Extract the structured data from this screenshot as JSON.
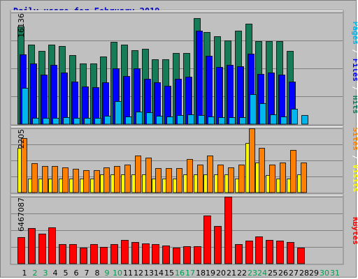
{
  "chart_data": [
    {
      "type": "bar",
      "title": "Daily usage for February 2019",
      "panel": "Pages / Files / Hits",
      "ymax_label": "16136",
      "ylim": [
        0,
        16136
      ],
      "categories": [
        "1",
        "2",
        "3",
        "4",
        "5",
        "6",
        "7",
        "8",
        "9",
        "10",
        "11",
        "12",
        "13",
        "14",
        "15",
        "16",
        "17",
        "18",
        "19",
        "20",
        "21",
        "22",
        "23",
        "24",
        "25",
        "26",
        "27",
        "28",
        "29",
        "30",
        "31"
      ],
      "series": [
        {
          "name": "Hits",
          "color": "#157c57",
          "values": [
            14100,
            11500,
            10600,
            11500,
            11300,
            10000,
            8800,
            8800,
            9800,
            11900,
            11500,
            10700,
            10900,
            9400,
            9400,
            10300,
            10300,
            15300,
            13300,
            12700,
            12100,
            13500,
            14500,
            12000,
            12000,
            12000,
            10600,
            null,
            null,
            null,
            null
          ]
        },
        {
          "name": "Files",
          "color": "#0000ff",
          "values": [
            10100,
            8800,
            7200,
            8600,
            7500,
            6200,
            5400,
            5300,
            6100,
            8100,
            7000,
            8100,
            6600,
            6100,
            5500,
            6600,
            6900,
            13500,
            9900,
            8300,
            8600,
            8400,
            10200,
            7300,
            7500,
            7200,
            6200,
            null,
            null,
            null,
            null
          ]
        },
        {
          "name": "Pages",
          "color": "#00b6ec",
          "values": [
            5200,
            900,
            900,
            900,
            1000,
            900,
            900,
            900,
            1200,
            3300,
            1100,
            1800,
            1700,
            1200,
            1100,
            1300,
            1400,
            1300,
            1100,
            1000,
            1000,
            1000,
            4300,
            3000,
            1400,
            1100,
            2200,
            1300,
            null,
            null,
            null
          ]
        }
      ]
    },
    {
      "type": "bar",
      "panel": "Sites / Visits",
      "ymax_label": "2205",
      "ylim": [
        0,
        2205
      ],
      "categories": [
        "1",
        "2",
        "3",
        "4",
        "5",
        "6",
        "7",
        "8",
        "9",
        "10",
        "11",
        "12",
        "13",
        "14",
        "15",
        "16",
        "17",
        "18",
        "19",
        "20",
        "21",
        "22",
        "23",
        "24",
        "25",
        "26",
        "27",
        "28",
        "29",
        "30",
        "31"
      ],
      "series": [
        {
          "name": "Visits",
          "color": "#ffff00",
          "values": [
            1530,
            480,
            480,
            480,
            480,
            480,
            480,
            480,
            630,
            630,
            630,
            630,
            630,
            480,
            480,
            480,
            630,
            630,
            630,
            630,
            630,
            480,
            1700,
            1040,
            600,
            480,
            480,
            630,
            null,
            null,
            null
          ]
        },
        {
          "name": "Sites",
          "color": "#ff8000",
          "values": [
            1880,
            1000,
            900,
            900,
            860,
            820,
            770,
            770,
            860,
            900,
            960,
            1270,
            1200,
            840,
            840,
            840,
            1150,
            970,
            1270,
            970,
            860,
            970,
            2200,
            1540,
            960,
            1030,
            1460,
            1030,
            null,
            null,
            null
          ]
        }
      ]
    },
    {
      "type": "bar",
      "panel": "KBytes",
      "ymax_label": "6467087",
      "ylim": [
        0,
        6467087
      ],
      "categories": [
        "1",
        "2",
        "3",
        "4",
        "5",
        "6",
        "7",
        "8",
        "9",
        "10",
        "11",
        "12",
        "13",
        "14",
        "15",
        "16",
        "17",
        "18",
        "19",
        "20",
        "21",
        "22",
        "23",
        "24",
        "25",
        "26",
        "27",
        "28",
        "29",
        "30",
        "31"
      ],
      "series": [
        {
          "name": "KBytes",
          "color": "#ff0000",
          "values": [
            2580000,
            3410000,
            2880000,
            3490000,
            1860000,
            1860000,
            1520000,
            1860000,
            1610000,
            1860000,
            2290000,
            2120000,
            1950000,
            1860000,
            1780000,
            1520000,
            1690000,
            1690000,
            4660000,
            3640000,
            6470000,
            1860000,
            2210000,
            2630000,
            2290000,
            2210000,
            2120000,
            1520000,
            null,
            null,
            null
          ]
        }
      ]
    }
  ],
  "weekend_days": [
    "2",
    "3",
    "9",
    "10",
    "16",
    "17",
    "23",
    "24",
    "30",
    "31"
  ],
  "colors": {
    "title": "#0000c0",
    "weekday_label": "#000000",
    "weekend_label": "#00a050",
    "pages_label": "#00b6ec",
    "files_label": "#0000ff",
    "hits_label": "#157c57",
    "sites_label": "#ff8000",
    "visits_label": "#ffff00",
    "kbytes_label": "#ff0000",
    "sep": "#ffffff"
  },
  "labels": {
    "pages": "Pages",
    "files": "Files",
    "hits": "Hits",
    "sep": " / ",
    "sites": "Sites",
    "visits": "Visits",
    "kbytes": "KBytes"
  }
}
